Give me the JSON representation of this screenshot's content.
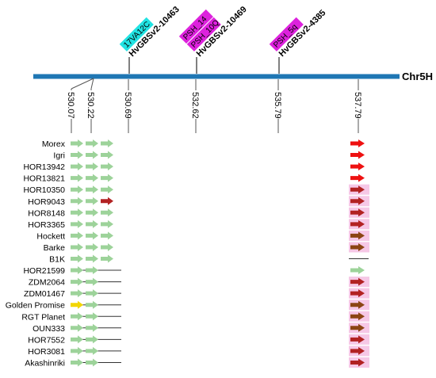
{
  "chromosome": {
    "label": "Chr5H",
    "color": "#1f77b4"
  },
  "markers": [
    {
      "name": "HvGBSv2-10463",
      "tags": [
        {
          "text": "17VA12C",
          "color": "#22e3e3"
        }
      ]
    },
    {
      "name": "HvGBSv2-10469",
      "tags": [
        {
          "text": "PSH_10Q",
          "color": "#dd22dd"
        },
        {
          "text": "PSH_14",
          "color": "#dd22dd"
        }
      ]
    },
    {
      "name": "HvGBSv2-4385",
      "tags": [
        {
          "text": "PSH_5q",
          "color": "#dd22dd"
        }
      ]
    }
  ],
  "positions": [
    "530.07",
    "530.22",
    "530.69",
    "532.62",
    "535.79",
    "537.79"
  ],
  "accessions": [
    {
      "name": "Morex",
      "left": [
        "g",
        "g",
        "g"
      ],
      "right": "r",
      "right_line": false,
      "left_line": false
    },
    {
      "name": "Igri",
      "left": [
        "g",
        "g",
        "g"
      ],
      "right": "r",
      "right_line": false,
      "left_line": false
    },
    {
      "name": "HOR13942",
      "left": [
        "g",
        "g",
        "g"
      ],
      "right": "r",
      "right_line": false,
      "left_line": false
    },
    {
      "name": "HOR13821",
      "left": [
        "g",
        "g",
        "g"
      ],
      "right": "r",
      "right_line": false,
      "left_line": false
    },
    {
      "name": "HOR10350",
      "left": [
        "g",
        "g",
        "g"
      ],
      "right": "d",
      "right_line": false,
      "left_line": false
    },
    {
      "name": "HOR9043",
      "left": [
        "g",
        "g",
        "d"
      ],
      "right": "d",
      "right_line": false,
      "left_line": false
    },
    {
      "name": "HOR8148",
      "left": [
        "g",
        "g",
        "g"
      ],
      "right": "d",
      "right_line": false,
      "left_line": false
    },
    {
      "name": "HOR3365",
      "left": [
        "g",
        "g",
        "g"
      ],
      "right": "d",
      "right_line": false,
      "left_line": false
    },
    {
      "name": "Hockett",
      "left": [
        "g",
        "g",
        "g"
      ],
      "right": "b",
      "right_line": false,
      "left_line": false
    },
    {
      "name": "Barke",
      "left": [
        "g",
        "g",
        "g"
      ],
      "right": "b",
      "right_line": false,
      "left_line": false
    },
    {
      "name": "B1K",
      "left": [
        "g",
        "g",
        "g"
      ],
      "right": "",
      "right_line": true,
      "left_line": false
    },
    {
      "name": "HOR21599",
      "left": [
        "g",
        "g"
      ],
      "right": "g",
      "right_line": false,
      "left_line": true
    },
    {
      "name": "ZDM2064",
      "left": [
        "g",
        "g"
      ],
      "right": "d",
      "right_line": false,
      "left_line": true
    },
    {
      "name": "ZDM01467",
      "left": [
        "g",
        "g"
      ],
      "right": "d",
      "right_line": false,
      "left_line": true
    },
    {
      "name": "Golden Promise",
      "left": [
        "y",
        "g"
      ],
      "right": "b",
      "right_line": false,
      "left_line": true
    },
    {
      "name": "RGT Planet",
      "left": [
        "g",
        "g"
      ],
      "right": "b",
      "right_line": false,
      "left_line": true
    },
    {
      "name": "OUN333",
      "left": [
        "g",
        "g"
      ],
      "right": "b",
      "right_line": false,
      "left_line": true
    },
    {
      "name": "HOR7552",
      "left": [
        "g",
        "g"
      ],
      "right": "d",
      "right_line": false,
      "left_line": true
    },
    {
      "name": "HOR3081",
      "left": [
        "g",
        "g"
      ],
      "right": "d",
      "right_line": false,
      "left_line": true
    },
    {
      "name": "Akashinriki",
      "left": [
        "g",
        "g"
      ],
      "right": "d",
      "right_line": false,
      "left_line": true
    }
  ],
  "arrow_colors": {
    "g": "#9dd39a",
    "r": "#ee1111",
    "d": "#b22222",
    "b": "#8b4513",
    "y": "#f2d600",
    "highlight": "#f6c8e6"
  }
}
